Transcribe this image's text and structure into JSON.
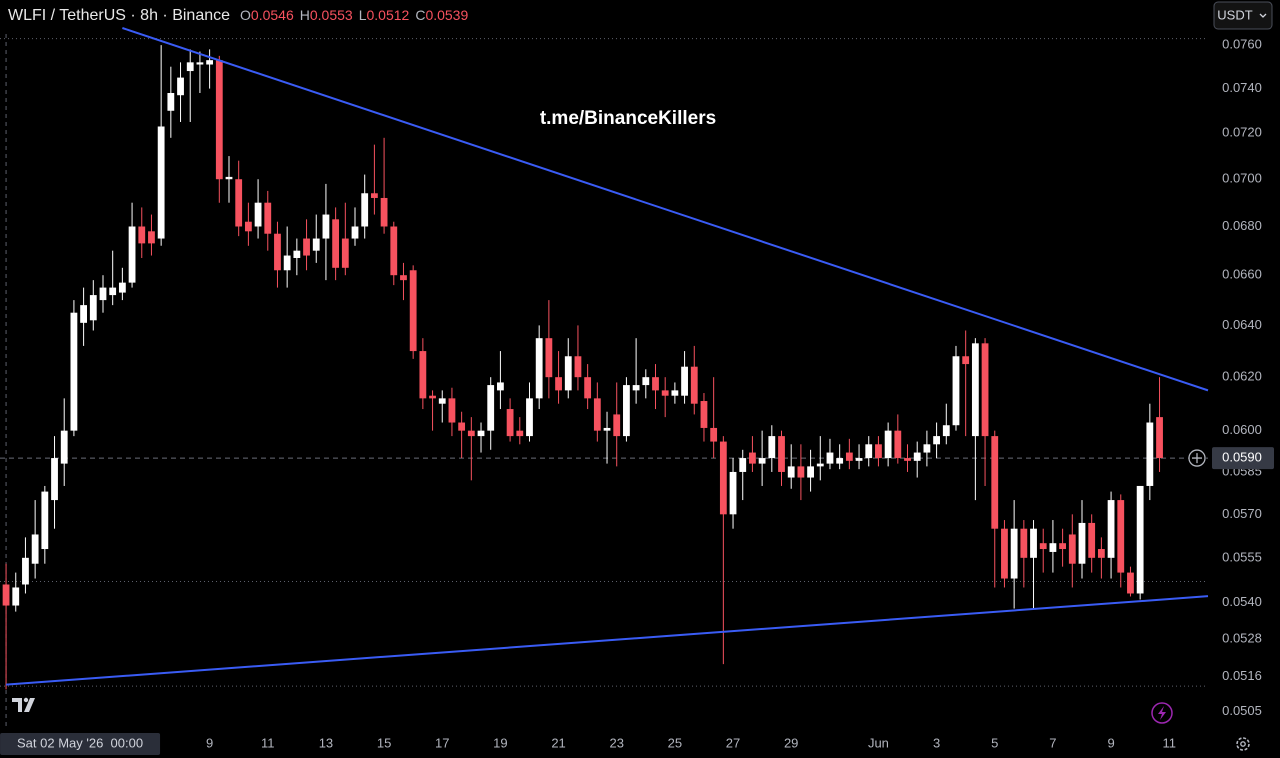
{
  "chart_data": {
    "type": "candlestick",
    "title": "WLFI / TetherUS · 8h · Binance",
    "ohlc_legend": [
      {
        "label": "O",
        "value": 0.0546
      },
      {
        "label": "H",
        "value": 0.0553
      },
      {
        "label": "L",
        "value": 0.0512
      },
      {
        "label": "C",
        "value": 0.0539
      }
    ],
    "currency_button": "USDT",
    "watermark": "t.me/BinanceKillers",
    "log_scale": true,
    "grid": false,
    "up_color": "#ffffff",
    "down_color": "#f7525f",
    "ylim": [
      0.04994,
      0.07813
    ],
    "xlim": [
      "2026-05-01 19:00",
      "2026-06-12 08:00"
    ],
    "yticks": [
      {
        "value": 0.076,
        "label": "0.0760"
      },
      {
        "value": 0.074,
        "label": "0.0740"
      },
      {
        "value": 0.072,
        "label": "0.0720"
      },
      {
        "value": 0.07,
        "label": "0.0700"
      },
      {
        "value": 0.068,
        "label": "0.0680"
      },
      {
        "value": 0.066,
        "label": "0.0660"
      },
      {
        "value": 0.064,
        "label": "0.0640"
      },
      {
        "value": 0.062,
        "label": "0.0620"
      },
      {
        "value": 0.06,
        "label": "0.0600"
      },
      {
        "value": 0.0585,
        "label": "0.0585"
      },
      {
        "value": 0.057,
        "label": "0.0570"
      },
      {
        "value": 0.0555,
        "label": "0.0555"
      },
      {
        "value": 0.054,
        "label": "0.0540"
      },
      0.0528,
      0.0516,
      0.0505
    ],
    "xticks": [
      {
        "value": "2026-05-09 00:00",
        "label": "9"
      },
      {
        "value": "2026-05-11 00:00",
        "label": "11"
      },
      {
        "value": "2026-05-13 00:00",
        "label": "13"
      },
      {
        "value": "2026-05-15 00:00",
        "label": "15"
      },
      {
        "value": "2026-05-17 00:00",
        "label": "17"
      },
      {
        "value": "2026-05-19 00:00",
        "label": "19"
      },
      {
        "value": "2026-05-21 00:00",
        "label": "21"
      },
      {
        "value": "2026-05-23 00:00",
        "label": "23"
      },
      {
        "value": "2026-05-25 00:00",
        "label": "25"
      },
      {
        "value": "2026-05-27 00:00",
        "label": "27"
      },
      {
        "value": "2026-05-29 00:00",
        "label": "29"
      },
      {
        "value": "2026-06-01 00:00",
        "label": "Jun"
      },
      {
        "value": "2026-06-03 00:00",
        "label": "3"
      },
      {
        "value": "2026-06-05 00:00",
        "label": "5"
      },
      {
        "value": "2026-06-07 00:00",
        "label": "7"
      },
      {
        "value": "2026-06-09 00:00",
        "label": "9"
      },
      {
        "value": "2026-06-11 00:00",
        "label": "11"
      }
    ],
    "crosshair": {
      "x": "2026-05-02 00:00",
      "label": "Sat 02 May '26  00:00"
    },
    "last_price": {
      "value": 0.059,
      "label": "0.0590"
    },
    "hlines": [
      0.0763,
      0.0547,
      0.0513
    ],
    "trendlines": [
      {
        "x": [
          "2026-05-06 00:00",
          "2026-06-12 08:00"
        ],
        "values": [
          0.0768,
          0.0615
        ],
        "color": "#3a5cf5"
      },
      {
        "x": [
          "2026-05-02 00:00",
          "2026-06-12 08:00"
        ],
        "values": [
          0.05135,
          0.05421
        ],
        "color": "#3a5cf5"
      }
    ],
    "x": [
      "2026-05-02 00:00",
      "2026-05-02 08:00",
      "2026-05-02 16:00",
      "2026-05-03 00:00",
      "2026-05-03 08:00",
      "2026-05-03 16:00",
      "2026-05-04 00:00",
      "2026-05-04 08:00",
      "2026-05-04 16:00",
      "2026-05-05 00:00",
      "2026-05-05 08:00",
      "2026-05-05 16:00",
      "2026-05-06 00:00",
      "2026-05-06 08:00",
      "2026-05-06 16:00",
      "2026-05-07 00:00",
      "2026-05-07 08:00",
      "2026-05-07 16:00",
      "2026-05-08 00:00",
      "2026-05-08 08:00",
      "2026-05-08 16:00",
      "2026-05-09 00:00",
      "2026-05-09 08:00",
      "2026-05-09 16:00",
      "2026-05-10 00:00",
      "2026-05-10 08:00",
      "2026-05-10 16:00",
      "2026-05-11 00:00",
      "2026-05-11 08:00",
      "2026-05-11 16:00",
      "2026-05-12 00:00",
      "2026-05-12 08:00",
      "2026-05-12 16:00",
      "2026-05-13 00:00",
      "2026-05-13 08:00",
      "2026-05-13 16:00",
      "2026-05-14 00:00",
      "2026-05-14 08:00",
      "2026-05-14 16:00",
      "2026-05-15 00:00",
      "2026-05-15 08:00",
      "2026-05-15 16:00",
      "2026-05-16 00:00",
      "2026-05-16 08:00",
      "2026-05-16 16:00",
      "2026-05-17 00:00",
      "2026-05-17 08:00",
      "2026-05-17 16:00",
      "2026-05-18 00:00",
      "2026-05-18 08:00",
      "2026-05-18 16:00",
      "2026-05-19 00:00",
      "2026-05-19 08:00",
      "2026-05-19 16:00",
      "2026-05-20 00:00",
      "2026-05-20 08:00",
      "2026-05-20 16:00",
      "2026-05-21 00:00",
      "2026-05-21 08:00",
      "2026-05-21 16:00",
      "2026-05-22 00:00",
      "2026-05-22 08:00",
      "2026-05-22 16:00",
      "2026-05-23 00:00",
      "2026-05-23 08:00",
      "2026-05-23 16:00",
      "2026-05-24 00:00",
      "2026-05-24 08:00",
      "2026-05-24 16:00",
      "2026-05-25 00:00",
      "2026-05-25 08:00",
      "2026-05-25 16:00",
      "2026-05-26 00:00",
      "2026-05-26 08:00",
      "2026-05-26 16:00",
      "2026-05-27 00:00",
      "2026-05-27 08:00",
      "2026-05-27 16:00",
      "2026-05-28 00:00",
      "2026-05-28 08:00",
      "2026-05-28 16:00",
      "2026-05-29 00:00",
      "2026-05-29 08:00",
      "2026-05-29 16:00",
      "2026-05-30 00:00",
      "2026-05-30 08:00",
      "2026-05-30 16:00",
      "2026-05-31 00:00",
      "2026-05-31 08:00",
      "2026-05-31 16:00",
      "2026-06-01 00:00",
      "2026-06-01 08:00",
      "2026-06-01 16:00",
      "2026-06-02 00:00",
      "2026-06-02 08:00",
      "2026-06-02 16:00",
      "2026-06-03 00:00",
      "2026-06-03 08:00",
      "2026-06-03 16:00",
      "2026-06-04 00:00",
      "2026-06-04 08:00",
      "2026-06-04 16:00",
      "2026-06-05 00:00",
      "2026-06-05 08:00",
      "2026-06-05 16:00",
      "2026-06-06 00:00",
      "2026-06-06 08:00",
      "2026-06-06 16:00",
      "2026-06-07 00:00",
      "2026-06-07 08:00",
      "2026-06-07 16:00",
      "2026-06-08 00:00",
      "2026-06-08 08:00",
      "2026-06-08 16:00",
      "2026-06-09 00:00",
      "2026-06-09 08:00",
      "2026-06-09 16:00",
      "2026-06-10 00:00",
      "2026-06-10 08:00",
      "2026-06-10 16:00"
    ],
    "open": [
      0.0546,
      0.0539,
      0.0546,
      0.0553,
      0.0558,
      0.0575,
      0.0588,
      0.06,
      0.0641,
      0.0642,
      0.065,
      0.0652,
      0.0653,
      0.0657,
      0.068,
      0.0678,
      0.0675,
      0.073,
      0.0737,
      0.0748,
      0.0751,
      0.0751,
      0.0753,
      0.07,
      0.07,
      0.0682,
      0.068,
      0.069,
      0.0677,
      0.0662,
      0.0667,
      0.0675,
      0.067,
      0.0675,
      0.0683,
      0.0675,
      0.0675,
      0.068,
      0.0694,
      0.0692,
      0.068,
      0.066,
      0.0662,
      0.063,
      0.0613,
      0.061,
      0.0612,
      0.0603,
      0.06,
      0.0598,
      0.06,
      0.0615,
      0.0608,
      0.06,
      0.0598,
      0.0612,
      0.0635,
      0.062,
      0.0615,
      0.0628,
      0.062,
      0.0612,
      0.06,
      0.0606,
      0.0598,
      0.0615,
      0.0617,
      0.062,
      0.0615,
      0.0613,
      0.0613,
      0.0624,
      0.0611,
      0.0601,
      0.0596,
      0.057,
      0.0585,
      0.0592,
      0.0588,
      0.059,
      0.0598,
      0.0583,
      0.0587,
      0.0583,
      0.0587,
      0.0588,
      0.0588,
      0.0592,
      0.0589,
      0.059,
      0.0595,
      0.059,
      0.06,
      0.059,
      0.0589,
      0.0592,
      0.0595,
      0.0598,
      0.0602,
      0.0628,
      0.0598,
      0.0633,
      0.0598,
      0.0565,
      0.0548,
      0.0565,
      0.0555,
      0.056,
      0.0557,
      0.056,
      0.0563,
      0.0553,
      0.0567,
      0.0558,
      0.0555,
      0.0575,
      0.055,
      0.0543,
      0.058,
      0.0605
    ],
    "high": [
      0.0553,
      0.055,
      0.0562,
      0.0575,
      0.058,
      0.0598,
      0.0612,
      0.065,
      0.0655,
      0.0658,
      0.066,
      0.067,
      0.0663,
      0.069,
      0.0688,
      0.0685,
      0.076,
      0.075,
      0.0752,
      0.0758,
      0.0757,
      0.0758,
      0.0755,
      0.071,
      0.0708,
      0.069,
      0.07,
      0.0695,
      0.0682,
      0.068,
      0.0675,
      0.0683,
      0.0685,
      0.0698,
      0.0688,
      0.069,
      0.0688,
      0.0702,
      0.0715,
      0.0718,
      0.0682,
      0.0665,
      0.0664,
      0.0635,
      0.0615,
      0.0615,
      0.0616,
      0.0607,
      0.0605,
      0.0603,
      0.062,
      0.063,
      0.0612,
      0.0605,
      0.0618,
      0.064,
      0.065,
      0.063,
      0.0635,
      0.064,
      0.0625,
      0.0618,
      0.0607,
      0.0618,
      0.062,
      0.0635,
      0.0623,
      0.0625,
      0.062,
      0.0618,
      0.063,
      0.0632,
      0.0614,
      0.062,
      0.0598,
      0.059,
      0.0593,
      0.0598,
      0.06,
      0.0602,
      0.06,
      0.0595,
      0.0595,
      0.0593,
      0.0598,
      0.0597,
      0.0595,
      0.0597,
      0.0595,
      0.0598,
      0.0598,
      0.0603,
      0.0606,
      0.0595,
      0.0596,
      0.06,
      0.0603,
      0.061,
      0.0632,
      0.0638,
      0.0635,
      0.0635,
      0.06,
      0.0568,
      0.0575,
      0.0568,
      0.0568,
      0.0565,
      0.0568,
      0.0565,
      0.057,
      0.0575,
      0.057,
      0.0562,
      0.0578,
      0.0577,
      0.0552,
      0.058,
      0.061,
      0.062
    ],
    "low": [
      0.0512,
      0.0537,
      0.0543,
      0.0548,
      0.0553,
      0.0565,
      0.058,
      0.0598,
      0.0632,
      0.0638,
      0.0645,
      0.0648,
      0.065,
      0.0655,
      0.0667,
      0.0668,
      0.0672,
      0.0718,
      0.0725,
      0.0725,
      0.0738,
      0.074,
      0.069,
      0.069,
      0.0676,
      0.0672,
      0.0675,
      0.067,
      0.0655,
      0.0655,
      0.066,
      0.0662,
      0.0665,
      0.0658,
      0.0658,
      0.066,
      0.0672,
      0.0675,
      0.0685,
      0.0677,
      0.0656,
      0.065,
      0.0627,
      0.0608,
      0.06,
      0.0603,
      0.0598,
      0.059,
      0.0582,
      0.0592,
      0.0593,
      0.0608,
      0.0596,
      0.0595,
      0.0596,
      0.0608,
      0.0612,
      0.061,
      0.0612,
      0.0615,
      0.0608,
      0.0596,
      0.0588,
      0.0587,
      0.0596,
      0.061,
      0.0612,
      0.0608,
      0.0605,
      0.061,
      0.061,
      0.0606,
      0.0596,
      0.059,
      0.052,
      0.0565,
      0.0575,
      0.0585,
      0.058,
      0.0585,
      0.058,
      0.0579,
      0.0575,
      0.0578,
      0.0582,
      0.0586,
      0.0586,
      0.0586,
      0.0586,
      0.0587,
      0.0587,
      0.0587,
      0.0588,
      0.0585,
      0.0583,
      0.0587,
      0.059,
      0.0595,
      0.06,
      0.0598,
      0.0575,
      0.058,
      0.0545,
      0.0545,
      0.0538,
      0.0545,
      0.0538,
      0.055,
      0.055,
      0.0552,
      0.0545,
      0.0548,
      0.055,
      0.0548,
      0.0548,
      0.0545,
      0.0542,
      0.0541,
      0.0575,
      0.0585
    ],
    "close": [
      0.0539,
      0.0545,
      0.0555,
      0.0563,
      0.0578,
      0.059,
      0.06,
      0.0645,
      0.0648,
      0.0652,
      0.0655,
      0.0655,
      0.0657,
      0.068,
      0.0673,
      0.0673,
      0.0723,
      0.0738,
      0.0745,
      0.0752,
      0.0752,
      0.0753,
      0.07,
      0.0701,
      0.068,
      0.0678,
      0.069,
      0.0677,
      0.0662,
      0.0668,
      0.067,
      0.0668,
      0.0675,
      0.0685,
      0.0663,
      0.0663,
      0.068,
      0.0694,
      0.0692,
      0.068,
      0.066,
      0.0658,
      0.063,
      0.0612,
      0.0612,
      0.0612,
      0.0603,
      0.06,
      0.0598,
      0.06,
      0.0617,
      0.0618,
      0.0598,
      0.0598,
      0.0612,
      0.0635,
      0.062,
      0.0615,
      0.0628,
      0.062,
      0.0612,
      0.06,
      0.0601,
      0.0598,
      0.0617,
      0.0617,
      0.062,
      0.0615,
      0.0613,
      0.0615,
      0.0624,
      0.061,
      0.0601,
      0.0596,
      0.057,
      0.0585,
      0.059,
      0.0588,
      0.059,
      0.0598,
      0.0585,
      0.0587,
      0.0583,
      0.0587,
      0.0588,
      0.0592,
      0.059,
      0.0589,
      0.059,
      0.0595,
      0.059,
      0.06,
      0.059,
      0.0589,
      0.0592,
      0.0595,
      0.0598,
      0.0602,
      0.0628,
      0.0625,
      0.0633,
      0.0598,
      0.0565,
      0.0548,
      0.0565,
      0.0555,
      0.0565,
      0.0558,
      0.056,
      0.0558,
      0.0553,
      0.0567,
      0.0555,
      0.0555,
      0.0575,
      0.055,
      0.0543,
      0.058,
      0.0603,
      0.059
    ]
  }
}
